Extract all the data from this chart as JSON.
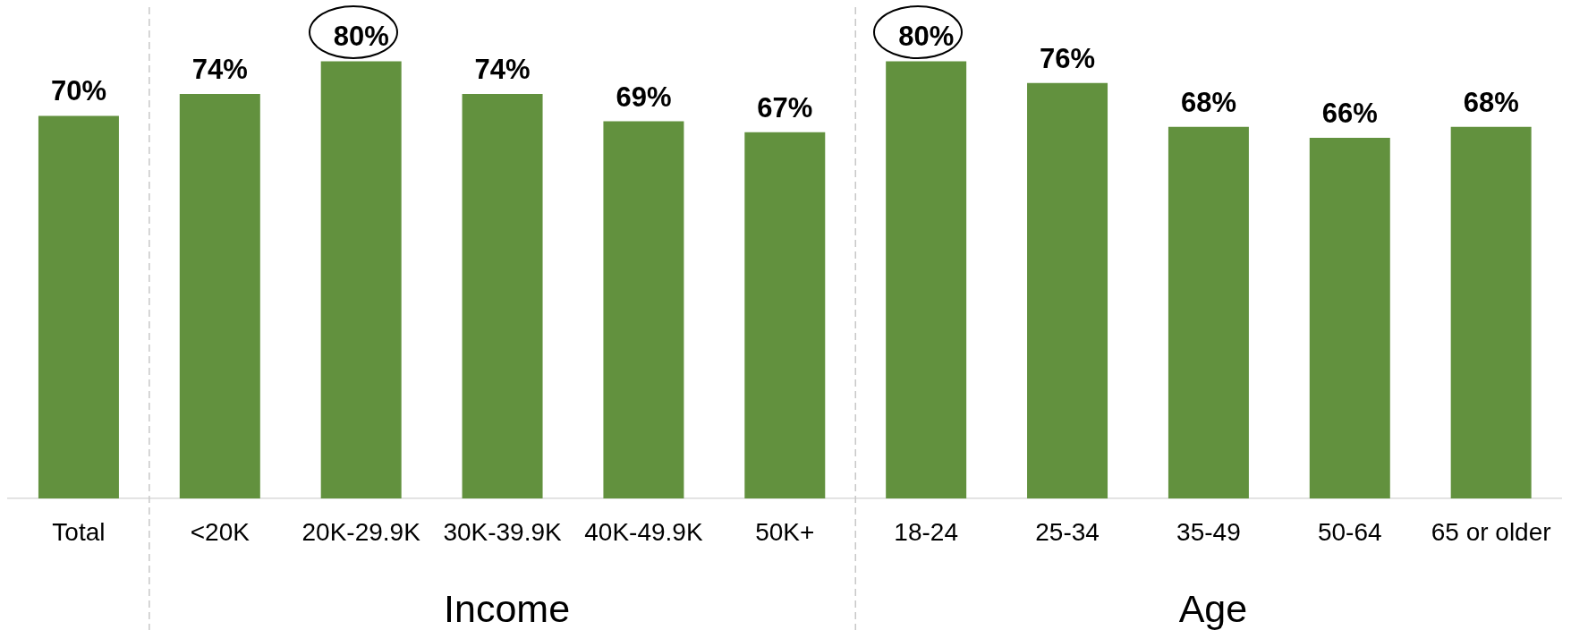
{
  "chart_data": {
    "type": "bar",
    "categories": [
      "Total",
      "<20K",
      "20K-29.9K",
      "30K-39.9K",
      "40K-49.9K",
      "50K+",
      "18-24",
      "25-34",
      "35-49",
      "50-64",
      "65 or older"
    ],
    "values": [
      70,
      74,
      80,
      74,
      69,
      67,
      80,
      76,
      68,
      66,
      68
    ],
    "color": "#62913e",
    "value_labels": [
      "70%",
      "74%",
      null,
      "74%",
      "69%",
      "67%",
      null,
      "76%",
      "68%",
      "66%",
      "68%"
    ],
    "annotations": [
      {
        "text": "80%",
        "x": "20K-29.9K",
        "y": 80
      },
      {
        "text": "80%",
        "x": "18-24",
        "y": 80
      },
      "Income",
      "Age"
    ],
    "grid": false,
    "legend": false
  }
}
